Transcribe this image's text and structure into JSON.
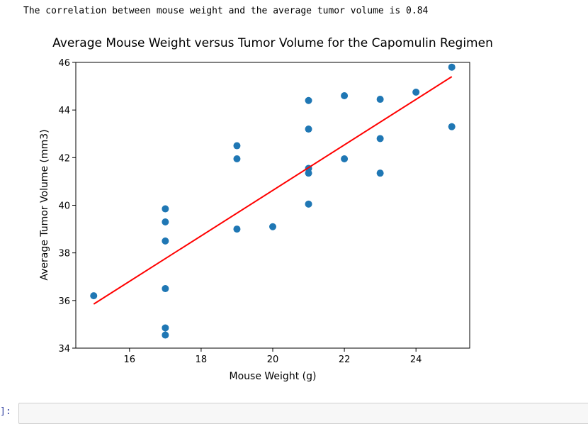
{
  "output": {
    "text": "The correlation between mouse weight and the average tumor volume is 0.84"
  },
  "notebook": {
    "prompt": "]:"
  },
  "chart_data": {
    "type": "scatter",
    "title": "Average Mouse Weight versus Tumor Volume for the Capomulin Regimen",
    "xlabel": "Mouse Weight (g)",
    "ylabel": "Average Tumor Volume (mm3)",
    "xlim": [
      14.5,
      25.5
    ],
    "ylim": [
      34,
      46
    ],
    "xticks": [
      16,
      18,
      20,
      22,
      24
    ],
    "yticks": [
      34,
      36,
      38,
      40,
      42,
      44,
      46
    ],
    "grid": false,
    "point_color": "#1f77b4",
    "line_color": "#ff0000",
    "points": [
      {
        "x": 15,
        "y": 36.2
      },
      {
        "x": 17,
        "y": 39.85
      },
      {
        "x": 17,
        "y": 39.3
      },
      {
        "x": 17,
        "y": 38.5
      },
      {
        "x": 17,
        "y": 36.5
      },
      {
        "x": 17,
        "y": 34.85
      },
      {
        "x": 17,
        "y": 34.55
      },
      {
        "x": 19,
        "y": 42.5
      },
      {
        "x": 19,
        "y": 41.95
      },
      {
        "x": 19,
        "y": 39.0
      },
      {
        "x": 20,
        "y": 39.1
      },
      {
        "x": 21,
        "y": 44.4
      },
      {
        "x": 21,
        "y": 43.2
      },
      {
        "x": 21,
        "y": 41.55
      },
      {
        "x": 21,
        "y": 41.35
      },
      {
        "x": 21,
        "y": 40.05
      },
      {
        "x": 22,
        "y": 44.6
      },
      {
        "x": 22,
        "y": 41.95
      },
      {
        "x": 23,
        "y": 44.45
      },
      {
        "x": 23,
        "y": 42.8
      },
      {
        "x": 23,
        "y": 41.35
      },
      {
        "x": 24,
        "y": 44.75
      },
      {
        "x": 25,
        "y": 45.8
      },
      {
        "x": 25,
        "y": 43.3
      }
    ],
    "regression": {
      "x": [
        15,
        25
      ],
      "y": [
        35.85,
        45.4
      ]
    }
  }
}
